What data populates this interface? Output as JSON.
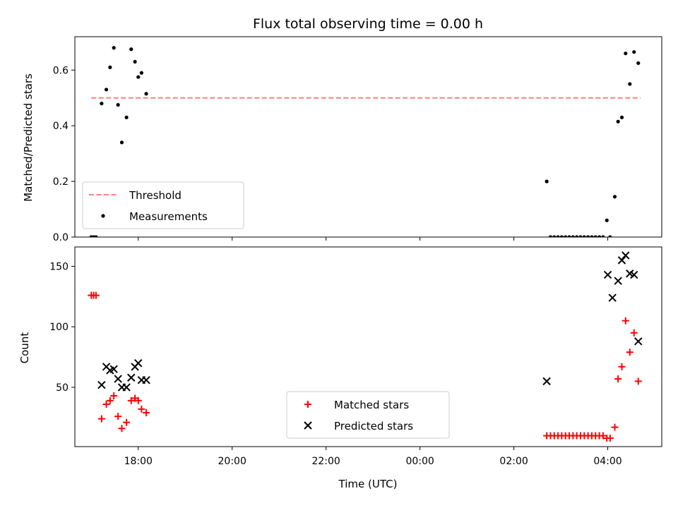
{
  "chart_data": [
    {
      "type": "scatter",
      "title": "Flux total observing time = 0.00 h",
      "xlabel": "",
      "ylabel": "Matched/Predicted stars",
      "x_unit": "hours since 17:00 UTC",
      "xlim": [
        -0.35,
        12.15
      ],
      "ylim": [
        0,
        0.72
      ],
      "yticks": [
        0.0,
        0.2,
        0.4,
        0.6
      ],
      "ytick_labels": [
        "0.0",
        "0.2",
        "0.4",
        "0.6"
      ],
      "legend": {
        "placement": "lower-left",
        "entries": [
          "Threshold",
          "Measurements"
        ]
      },
      "threshold": {
        "name": "Threshold",
        "value": 0.5,
        "x_range": [
          0.0,
          11.7
        ],
        "color": "#ff7f7f",
        "style": "dashed"
      },
      "series": [
        {
          "name": "Measurements",
          "color": "#000000",
          "marker": "dot",
          "points": [
            [
              0.0,
              0.0
            ],
            [
              0.05,
              0.0
            ],
            [
              0.1,
              0.0
            ],
            [
              0.22,
              0.48
            ],
            [
              0.32,
              0.53
            ],
            [
              0.4,
              0.61
            ],
            [
              0.48,
              0.68
            ],
            [
              0.57,
              0.475
            ],
            [
              0.65,
              0.34
            ],
            [
              0.75,
              0.43
            ],
            [
              0.85,
              0.675
            ],
            [
              0.93,
              0.63
            ],
            [
              1.0,
              0.575
            ],
            [
              1.07,
              0.59
            ],
            [
              1.17,
              0.515
            ],
            [
              9.7,
              0.2
            ],
            [
              9.78,
              0.0
            ],
            [
              9.86,
              0.0
            ],
            [
              9.94,
              0.0
            ],
            [
              10.02,
              0.0
            ],
            [
              10.1,
              0.0
            ],
            [
              10.18,
              0.0
            ],
            [
              10.26,
              0.0
            ],
            [
              10.34,
              0.0
            ],
            [
              10.42,
              0.0
            ],
            [
              10.5,
              0.0
            ],
            [
              10.58,
              0.0
            ],
            [
              10.66,
              0.0
            ],
            [
              10.74,
              0.0
            ],
            [
              10.82,
              0.0
            ],
            [
              10.9,
              0.0
            ],
            [
              10.98,
              0.06
            ],
            [
              11.05,
              0.0
            ],
            [
              11.15,
              0.145
            ],
            [
              11.22,
              0.415
            ],
            [
              11.3,
              0.43
            ],
            [
              11.38,
              0.66
            ],
            [
              11.47,
              0.55
            ],
            [
              11.56,
              0.665
            ],
            [
              11.65,
              0.625
            ]
          ]
        }
      ]
    },
    {
      "type": "scatter",
      "title": "",
      "xlabel": "Time (UTC)",
      "ylabel": "Count",
      "x_unit": "hours since 17:00 UTC",
      "xlim": [
        -0.35,
        12.15
      ],
      "ylim": [
        1,
        166
      ],
      "xticks": [
        1,
        3,
        5,
        7,
        9,
        11
      ],
      "xtick_labels": [
        "18:00",
        "20:00",
        "22:00",
        "00:00",
        "02:00",
        "04:00"
      ],
      "yticks": [
        50,
        100,
        150
      ],
      "ytick_labels": [
        "50",
        "100",
        "150"
      ],
      "legend": {
        "placement": "lower-center",
        "entries": [
          "Matched stars",
          "Predicted stars"
        ]
      },
      "series": [
        {
          "name": "Matched stars",
          "color": "#ff0000",
          "marker": "plus",
          "points": [
            [
              0.0,
              126
            ],
            [
              0.05,
              126
            ],
            [
              0.1,
              126
            ],
            [
              0.22,
              24
            ],
            [
              0.32,
              36
            ],
            [
              0.4,
              39
            ],
            [
              0.48,
              43
            ],
            [
              0.57,
              26
            ],
            [
              0.65,
              16
            ],
            [
              0.75,
              21
            ],
            [
              0.85,
              39
            ],
            [
              0.93,
              41
            ],
            [
              1.0,
              39
            ],
            [
              1.07,
              32
            ],
            [
              1.17,
              29
            ],
            [
              9.7,
              10
            ],
            [
              9.78,
              10
            ],
            [
              9.86,
              10
            ],
            [
              9.94,
              10
            ],
            [
              10.02,
              10
            ],
            [
              10.1,
              10
            ],
            [
              10.18,
              10
            ],
            [
              10.26,
              10
            ],
            [
              10.34,
              10
            ],
            [
              10.42,
              10
            ],
            [
              10.5,
              10
            ],
            [
              10.58,
              10
            ],
            [
              10.66,
              10
            ],
            [
              10.74,
              10
            ],
            [
              10.82,
              10
            ],
            [
              10.9,
              10
            ],
            [
              10.98,
              8
            ],
            [
              11.05,
              8
            ],
            [
              11.15,
              17
            ],
            [
              11.22,
              57
            ],
            [
              11.3,
              67
            ],
            [
              11.38,
              105
            ],
            [
              11.47,
              79
            ],
            [
              11.56,
              95
            ],
            [
              11.65,
              55
            ]
          ]
        },
        {
          "name": "Predicted stars",
          "color": "#000000",
          "marker": "x",
          "points": [
            [
              0.22,
              52
            ],
            [
              0.32,
              67
            ],
            [
              0.4,
              64
            ],
            [
              0.48,
              65
            ],
            [
              0.57,
              57
            ],
            [
              0.65,
              50
            ],
            [
              0.75,
              50
            ],
            [
              0.85,
              58
            ],
            [
              0.93,
              67
            ],
            [
              1.0,
              70
            ],
            [
              1.07,
              56
            ],
            [
              1.17,
              56
            ],
            [
              9.7,
              55
            ],
            [
              11.0,
              143
            ],
            [
              11.1,
              124
            ],
            [
              11.22,
              138
            ],
            [
              11.3,
              155
            ],
            [
              11.38,
              159
            ],
            [
              11.47,
              144
            ],
            [
              11.56,
              143
            ],
            [
              11.65,
              88
            ]
          ]
        }
      ]
    }
  ]
}
